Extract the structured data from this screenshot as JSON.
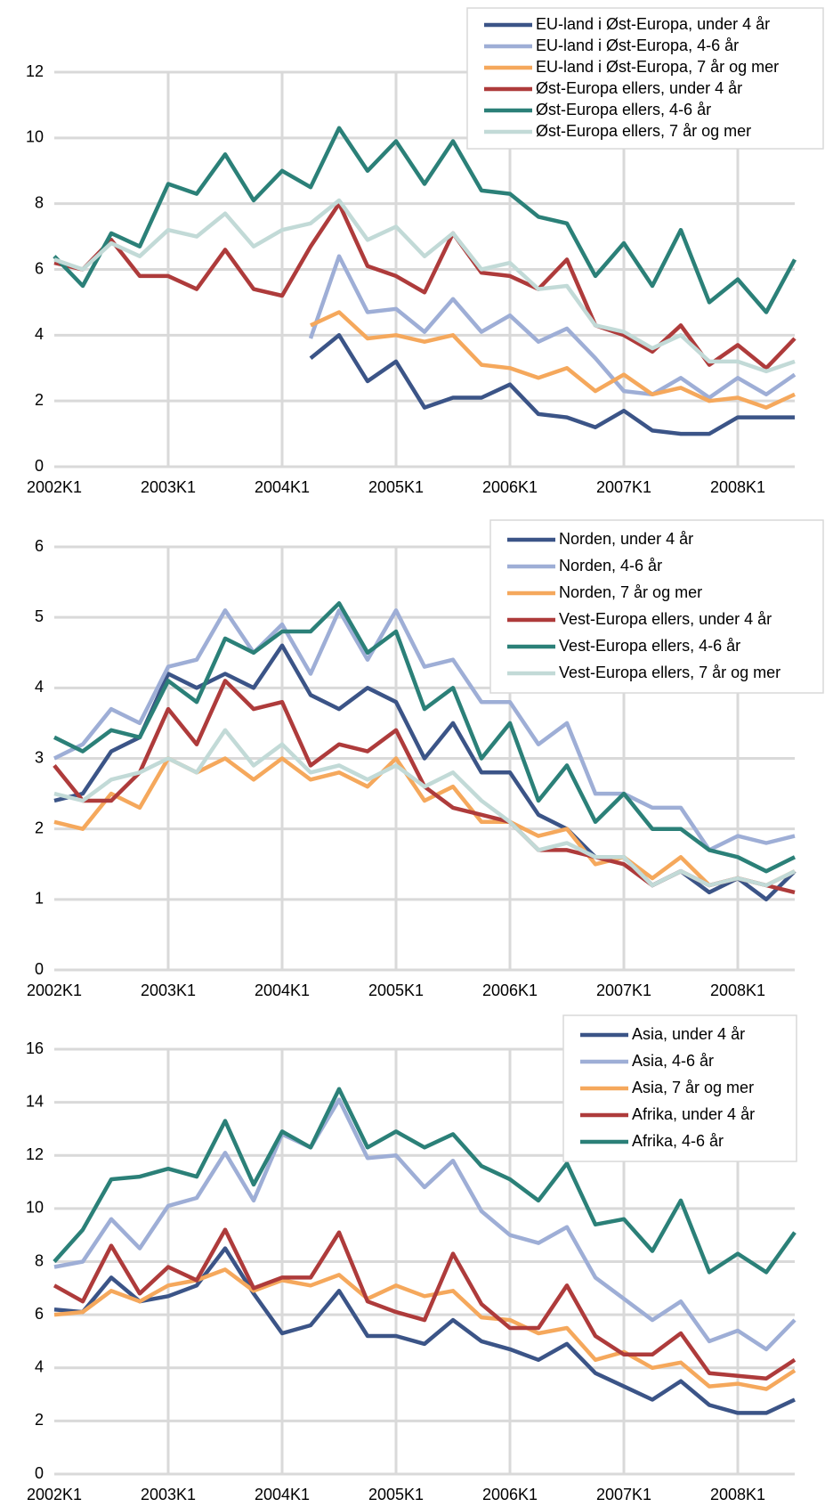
{
  "chart_data": [
    {
      "type": "line",
      "categories": [
        "2002K1",
        null,
        null,
        null,
        "2003K1",
        null,
        null,
        null,
        "2004K1",
        null,
        null,
        null,
        "2005K1",
        null,
        null,
        null,
        "2006K1",
        null,
        null,
        null,
        "2007K1",
        null,
        null,
        null,
        "2008K1",
        null,
        null
      ],
      "ylim": [
        0,
        12
      ],
      "yticks": [
        0,
        2,
        4,
        6,
        8,
        10,
        12
      ],
      "grid": true,
      "legend": "upper right",
      "series": [
        {
          "name": "EU-land i Øst-Europa, under 4 år",
          "color": "#3b5487",
          "values": [
            null,
            null,
            null,
            null,
            null,
            null,
            null,
            null,
            null,
            3.3,
            4.0,
            2.6,
            3.2,
            1.8,
            2.1,
            2.1,
            2.5,
            1.6,
            1.5,
            1.2,
            1.7,
            1.1,
            1.0,
            1.0,
            1.5,
            1.5,
            1.5
          ]
        },
        {
          "name": "EU-land i Øst-Europa, 4-6 år",
          "color": "#9eaed6",
          "values": [
            null,
            null,
            null,
            null,
            null,
            null,
            null,
            null,
            null,
            3.9,
            6.4,
            4.7,
            4.8,
            4.1,
            5.1,
            4.1,
            4.6,
            3.8,
            4.2,
            3.3,
            2.3,
            2.2,
            2.7,
            2.1,
            2.7,
            2.2,
            2.8
          ]
        },
        {
          "name": "EU-land i Øst-Europa, 7 år og mer",
          "color": "#f5a85c",
          "values": [
            null,
            null,
            null,
            null,
            null,
            null,
            null,
            null,
            null,
            4.3,
            4.7,
            3.9,
            4.0,
            3.8,
            4.0,
            3.1,
            3.0,
            2.7,
            3.0,
            2.3,
            2.8,
            2.2,
            2.4,
            2.0,
            2.1,
            1.8,
            2.2
          ]
        },
        {
          "name": "Øst-Europa ellers, under 4 år",
          "color": "#ae3b3b",
          "values": [
            6.2,
            6.0,
            6.9,
            5.8,
            5.8,
            5.4,
            6.6,
            5.4,
            5.2,
            6.7,
            8.0,
            6.1,
            5.8,
            5.3,
            7.1,
            5.9,
            5.8,
            5.4,
            6.3,
            4.3,
            4.0,
            3.5,
            4.3,
            3.1,
            3.7,
            3.0,
            3.9
          ]
        },
        {
          "name": "Øst-Europa ellers, 4-6 år",
          "color": "#2b8078",
          "values": [
            6.4,
            5.5,
            7.1,
            6.7,
            8.6,
            8.3,
            9.5,
            8.1,
            9.0,
            8.5,
            10.3,
            9.0,
            9.9,
            8.6,
            9.9,
            8.4,
            8.3,
            7.6,
            7.4,
            5.8,
            6.8,
            5.5,
            7.2,
            5.0,
            5.7,
            4.7,
            6.3
          ]
        },
        {
          "name": "Øst-Europa ellers, 7 år og mer",
          "color": "#c2dad7",
          "values": [
            6.3,
            6.0,
            6.8,
            6.4,
            7.2,
            7.0,
            7.7,
            6.7,
            7.2,
            7.4,
            8.1,
            6.9,
            7.3,
            6.4,
            7.1,
            6.0,
            6.2,
            5.4,
            5.5,
            4.3,
            4.1,
            3.6,
            4.0,
            3.2,
            3.2,
            2.9,
            3.2
          ]
        }
      ]
    },
    {
      "type": "line",
      "categories": [
        "2002K1",
        null,
        null,
        null,
        "2003K1",
        null,
        null,
        null,
        "2004K1",
        null,
        null,
        null,
        "2005K1",
        null,
        null,
        null,
        "2006K1",
        null,
        null,
        null,
        "2007K1",
        null,
        null,
        null,
        "2008K1",
        null,
        null
      ],
      "ylim": [
        0,
        6
      ],
      "yticks": [
        0,
        1,
        2,
        3,
        4,
        5,
        6
      ],
      "grid": true,
      "legend": "upper right",
      "series": [
        {
          "name": "Norden, under 4 år",
          "color": "#3b5487",
          "values": [
            2.4,
            2.5,
            3.1,
            3.3,
            4.2,
            4.0,
            4.2,
            4.0,
            4.6,
            3.9,
            3.7,
            4.0,
            3.8,
            3.0,
            3.5,
            2.8,
            2.8,
            2.2,
            2.0,
            1.6,
            1.6,
            1.2,
            1.4,
            1.1,
            1.3,
            1.0,
            1.4
          ]
        },
        {
          "name": "Norden, 4-6 år",
          "color": "#9eaed6",
          "values": [
            3.0,
            3.2,
            3.7,
            3.5,
            4.3,
            4.4,
            5.1,
            4.5,
            4.9,
            4.2,
            5.1,
            4.4,
            5.1,
            4.3,
            4.4,
            3.8,
            3.8,
            3.2,
            3.5,
            2.5,
            2.5,
            2.3,
            2.3,
            1.7,
            1.9,
            1.8,
            1.9
          ]
        },
        {
          "name": "Norden, 7 år og mer",
          "color": "#f5a85c",
          "values": [
            2.1,
            2.0,
            2.5,
            2.3,
            3.0,
            2.8,
            3.0,
            2.7,
            3.0,
            2.7,
            2.8,
            2.6,
            3.0,
            2.4,
            2.6,
            2.1,
            2.1,
            1.9,
            2.0,
            1.5,
            1.6,
            1.3,
            1.6,
            1.2,
            1.3,
            1.2,
            1.4
          ]
        },
        {
          "name": "Vest-Europa ellers, under 4 år",
          "color": "#ae3b3b",
          "values": [
            2.9,
            2.4,
            2.4,
            2.8,
            3.7,
            3.2,
            4.1,
            3.7,
            3.8,
            2.9,
            3.2,
            3.1,
            3.4,
            2.6,
            2.3,
            2.2,
            2.1,
            1.7,
            1.7,
            1.6,
            1.5,
            1.2,
            1.4,
            1.2,
            1.3,
            1.2,
            1.1
          ]
        },
        {
          "name": "Vest-Europa ellers, 4-6 år",
          "color": "#2b8078",
          "values": [
            3.3,
            3.1,
            3.4,
            3.3,
            4.1,
            3.8,
            4.7,
            4.5,
            4.8,
            4.8,
            5.2,
            4.5,
            4.8,
            3.7,
            4.0,
            3.0,
            3.5,
            2.4,
            2.9,
            2.1,
            2.5,
            2.0,
            2.0,
            1.7,
            1.6,
            1.4,
            1.6
          ]
        },
        {
          "name": "Vest-Europa ellers, 7 år og mer",
          "color": "#c2dad7",
          "values": [
            2.5,
            2.4,
            2.7,
            2.8,
            3.0,
            2.8,
            3.4,
            2.9,
            3.2,
            2.8,
            2.9,
            2.7,
            2.9,
            2.6,
            2.8,
            2.4,
            2.1,
            1.7,
            1.8,
            1.6,
            1.6,
            1.2,
            1.4,
            1.2,
            1.3,
            1.2,
            1.4
          ]
        }
      ]
    },
    {
      "type": "line",
      "categories": [
        "2002K1",
        null,
        null,
        null,
        "2003K1",
        null,
        null,
        null,
        "2004K1",
        null,
        null,
        null,
        "2005K1",
        null,
        null,
        null,
        "2006K1",
        null,
        null,
        null,
        "2007K1",
        null,
        null,
        null,
        "2008K1",
        null,
        null
      ],
      "ylim": [
        0,
        16
      ],
      "yticks": [
        0,
        2,
        4,
        6,
        8,
        10,
        12,
        14,
        16
      ],
      "grid": true,
      "legend": "upper right",
      "series": [
        {
          "name": "Asia, under 4 år",
          "color": "#3b5487",
          "values": [
            6.2,
            6.1,
            7.4,
            6.5,
            6.7,
            7.1,
            8.5,
            6.8,
            5.3,
            5.6,
            6.9,
            5.2,
            5.2,
            4.9,
            5.8,
            5.0,
            4.7,
            4.3,
            4.9,
            3.8,
            3.3,
            2.8,
            3.5,
            2.6,
            2.3,
            2.3,
            2.8
          ]
        },
        {
          "name": "Asia, 4-6 år",
          "color": "#9eaed6",
          "values": [
            7.8,
            8.0,
            9.6,
            8.5,
            10.1,
            10.4,
            12.1,
            10.3,
            12.8,
            12.3,
            14.1,
            11.9,
            12.0,
            10.8,
            11.8,
            9.9,
            9.0,
            8.7,
            9.3,
            7.4,
            6.6,
            5.8,
            6.5,
            5.0,
            5.4,
            4.7,
            5.8
          ]
        },
        {
          "name": "Asia, 7 år og mer",
          "color": "#f5a85c",
          "values": [
            6.0,
            6.1,
            6.9,
            6.5,
            7.1,
            7.3,
            7.7,
            6.9,
            7.3,
            7.1,
            7.5,
            6.6,
            7.1,
            6.7,
            6.9,
            5.9,
            5.8,
            5.3,
            5.5,
            4.3,
            4.6,
            4.0,
            4.2,
            3.3,
            3.4,
            3.2,
            3.9
          ]
        },
        {
          "name": "Afrika, under 4 år",
          "color": "#ae3b3b",
          "values": [
            7.1,
            6.5,
            8.6,
            6.8,
            7.8,
            7.3,
            9.2,
            7.0,
            7.4,
            7.4,
            9.1,
            6.5,
            6.1,
            5.8,
            8.3,
            6.4,
            5.5,
            5.5,
            7.1,
            5.2,
            4.5,
            4.5,
            5.3,
            3.8,
            3.7,
            3.6,
            4.3
          ]
        },
        {
          "name": "Afrika, 4-6 år",
          "color": "#2b8078",
          "values": [
            8.0,
            9.2,
            11.1,
            11.2,
            11.5,
            11.2,
            13.3,
            10.9,
            12.9,
            12.3,
            14.5,
            12.3,
            12.9,
            12.3,
            12.8,
            11.6,
            11.1,
            10.3,
            11.7,
            9.4,
            9.6,
            8.4,
            10.3,
            7.6,
            8.3,
            7.6,
            9.1
          ]
        }
      ]
    }
  ]
}
